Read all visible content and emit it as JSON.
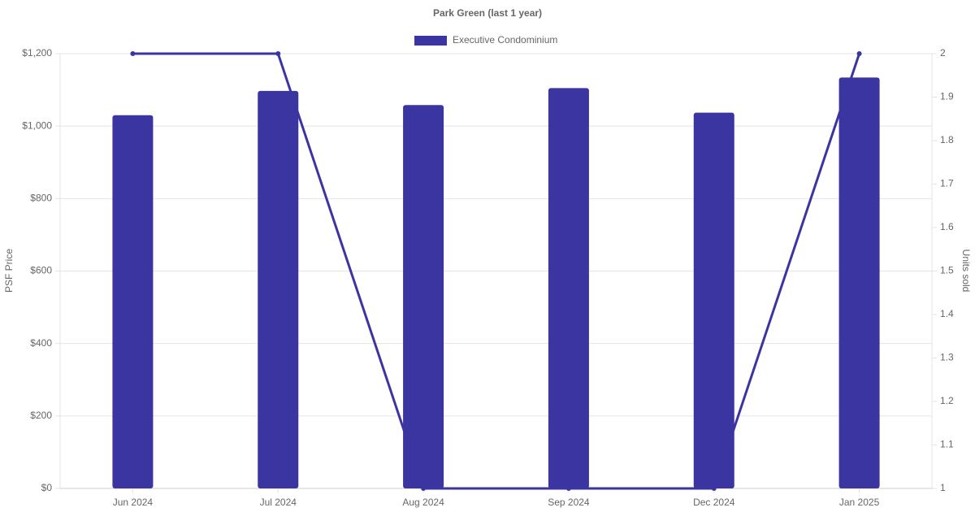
{
  "chart_data": {
    "type": "bar",
    "title": "Park Green (last 1 year)",
    "y_label": "PSF Price",
    "y2_label": "Units sold",
    "categories": [
      "Jun 2024",
      "Jul 2024",
      "Aug 2024",
      "Sep 2024",
      "Dec 2024",
      "Jan 2025"
    ],
    "series": [
      {
        "name": "Executive Condominium",
        "type": "bar",
        "color": "#3a35a0",
        "values": [
          1030,
          1097,
          1058,
          1105,
          1037,
          1134
        ]
      },
      {
        "type": "line",
        "axis": "y2",
        "color": "#3a35a0",
        "values": [
          2,
          2,
          1,
          1,
          1,
          2
        ]
      }
    ],
    "ylim": [
      0,
      1200
    ],
    "yticks": [
      {
        "value": 0,
        "label": "$0"
      },
      {
        "value": 200,
        "label": "$200"
      },
      {
        "value": 400,
        "label": "$400"
      },
      {
        "value": 600,
        "label": "$600"
      },
      {
        "value": 800,
        "label": "$800"
      },
      {
        "value": 1000,
        "label": "$1,000"
      },
      {
        "value": 1200,
        "label": "$1,200"
      }
    ],
    "y2lim": [
      1,
      2
    ],
    "y2ticks": [
      1,
      1.1,
      1.2,
      1.3,
      1.4,
      1.5,
      1.6,
      1.7,
      1.8,
      1.9,
      2
    ],
    "grid": true,
    "legend": "top"
  }
}
